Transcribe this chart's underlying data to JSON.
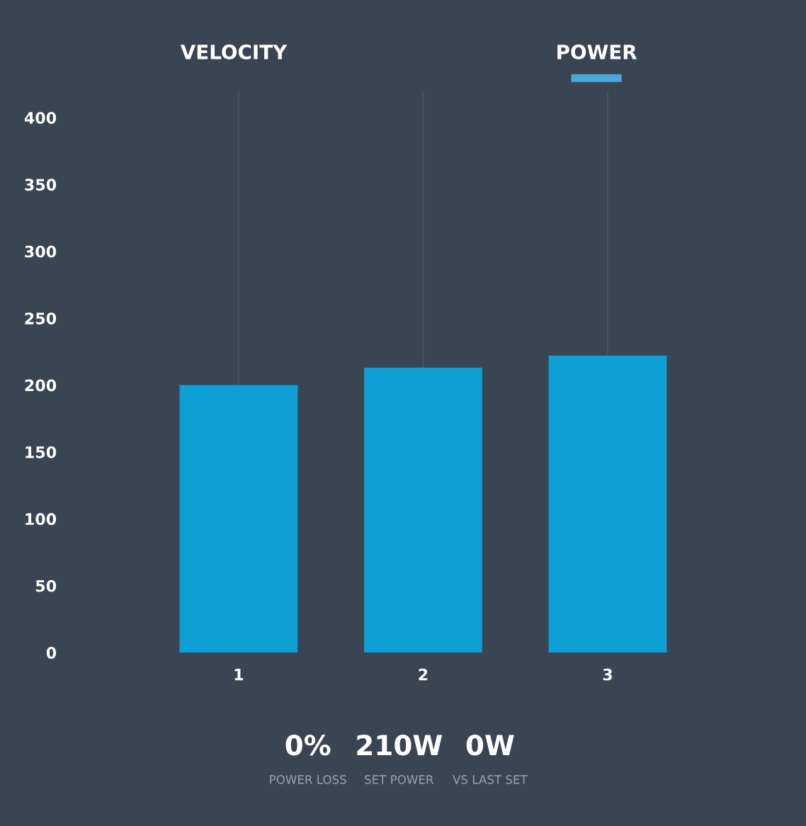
{
  "chart_data": {
    "type": "bar",
    "categories": [
      "1",
      "2",
      "3"
    ],
    "values": [
      200,
      213,
      222
    ],
    "color": "#0ea0d5",
    "ylim": [
      0,
      420
    ],
    "yticks": [
      0,
      50,
      100,
      150,
      200,
      250,
      300,
      350,
      400
    ],
    "grid": "x",
    "annotations": [
      "VELOCITY",
      "POWER",
      "0%",
      "POWER LOSS",
      "210W",
      "SET POWER",
      "0W",
      "VS LAST SET"
    ]
  }
}
